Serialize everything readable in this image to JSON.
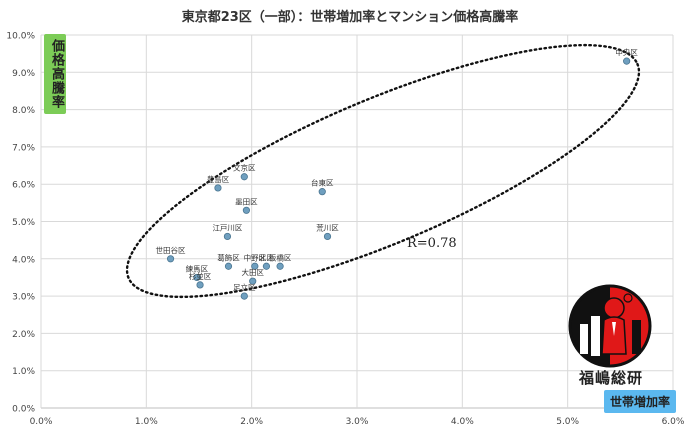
{
  "chart_data": {
    "type": "scatter",
    "title": "東京都23区（一部）：世帯増加率とマンション価格高騰率",
    "xlabel": "世帯増加率",
    "ylabel": "価格高騰率",
    "xlim": [
      0,
      0.06
    ],
    "ylim": [
      0,
      0.1
    ],
    "x_ticks": [
      "0.0%",
      "1.0%",
      "2.0%",
      "3.0%",
      "4.0%",
      "5.0%",
      "6.0%"
    ],
    "y_ticks": [
      "0.0%",
      "1.0%",
      "2.0%",
      "3.0%",
      "4.0%",
      "5.0%",
      "6.0%",
      "7.0%",
      "8.0%",
      "9.0%",
      "10.0%"
    ],
    "grid": true,
    "annotation": "R=0.78",
    "points": [
      {
        "label": "中央区",
        "x": 0.0556,
        "y": 0.093
      },
      {
        "label": "文京区",
        "x": 0.0193,
        "y": 0.062
      },
      {
        "label": "豊島区",
        "x": 0.0168,
        "y": 0.059
      },
      {
        "label": "台東区",
        "x": 0.0267,
        "y": 0.058
      },
      {
        "label": "墨田区",
        "x": 0.0195,
        "y": 0.053
      },
      {
        "label": "荒川区",
        "x": 0.0272,
        "y": 0.046
      },
      {
        "label": "江戸川区",
        "x": 0.0177,
        "y": 0.046
      },
      {
        "label": "北区",
        "x": 0.0214,
        "y": 0.038
      },
      {
        "label": "世田谷区",
        "x": 0.0123,
        "y": 0.04
      },
      {
        "label": "葛飾区",
        "x": 0.0178,
        "y": 0.038
      },
      {
        "label": "中野区",
        "x": 0.0203,
        "y": 0.038
      },
      {
        "label": "板橋区",
        "x": 0.0227,
        "y": 0.038
      },
      {
        "label": "大田区",
        "x": 0.0201,
        "y": 0.034
      },
      {
        "label": "練馬区",
        "x": 0.0148,
        "y": 0.035
      },
      {
        "label": "杉並区",
        "x": 0.0151,
        "y": 0.033
      },
      {
        "label": "足立区",
        "x": 0.0193,
        "y": 0.03
      }
    ]
  },
  "tags": {
    "y": "価格高騰率",
    "x": "世帯増加率"
  },
  "brand": {
    "name": "福嶋総研"
  },
  "colors": {
    "point": "#6f9fbf",
    "grid": "#d9d9d9",
    "ytag": "#7ccc57",
    "xtag": "#5bb8ef",
    "logo_red": "#e01818"
  }
}
